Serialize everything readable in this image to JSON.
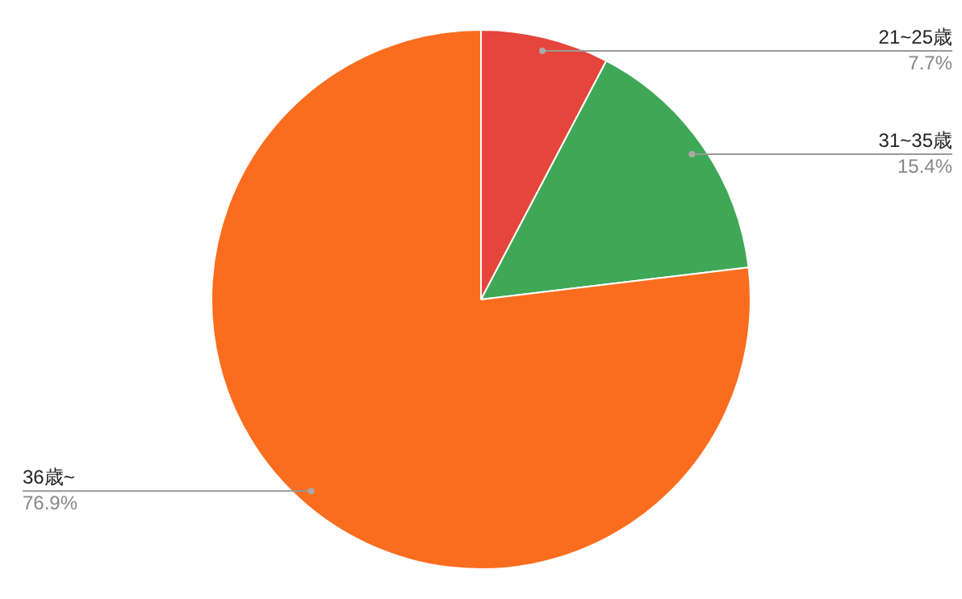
{
  "chart_data": {
    "type": "pie",
    "categories": [
      "21~25歳",
      "31~35歳",
      "36歳~"
    ],
    "values": [
      7.7,
      15.4,
      76.9
    ],
    "colors": [
      "#e5453a",
      "#3ea857",
      "#fb6d1e"
    ],
    "value_labels": [
      "7.7%",
      "15.4%",
      "76.9%"
    ],
    "legend": false
  }
}
